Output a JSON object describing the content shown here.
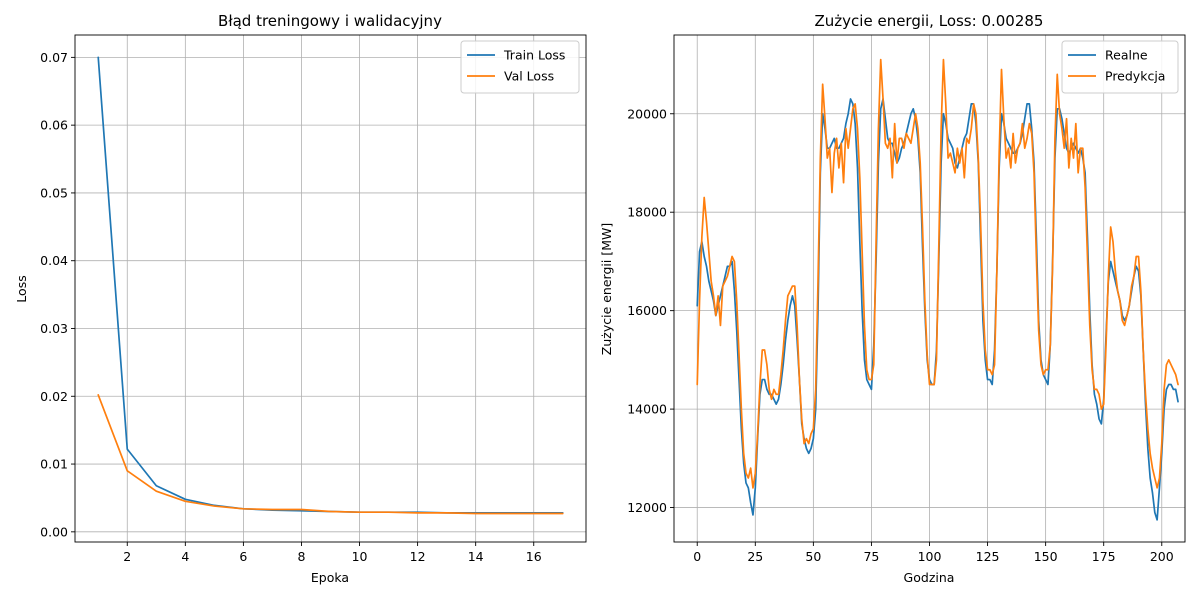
{
  "chart_data": [
    {
      "type": "line",
      "title": "Błąd treningowy i walidacyjny",
      "xlabel": "Epoka",
      "ylabel": "Loss",
      "xlim": [
        0.2,
        17.8
      ],
      "ylim": [
        -0.0015,
        0.0733
      ],
      "xticks": [
        2,
        4,
        6,
        8,
        10,
        12,
        14,
        16
      ],
      "yticks": [
        0.0,
        0.01,
        0.02,
        0.03,
        0.04,
        0.05,
        0.06,
        0.07
      ],
      "ytick_labels": [
        "0.00",
        "0.01",
        "0.02",
        "0.03",
        "0.04",
        "0.05",
        "0.06",
        "0.07"
      ],
      "grid": true,
      "legend": "top-right",
      "x": [
        1,
        2,
        3,
        4,
        5,
        6,
        7,
        8,
        9,
        10,
        11,
        12,
        13,
        14,
        15,
        16,
        17
      ],
      "series": [
        {
          "name": "Train Loss",
          "color": "#1f77b4",
          "values": [
            0.07,
            0.0122,
            0.0068,
            0.0048,
            0.0039,
            0.0034,
            0.0032,
            0.0031,
            0.003,
            0.0029,
            0.0029,
            0.0029,
            0.0028,
            0.0028,
            0.0028,
            0.0028,
            0.0028
          ]
        },
        {
          "name": "Val Loss",
          "color": "#ff7f0e",
          "values": [
            0.0202,
            0.009,
            0.006,
            0.0045,
            0.0038,
            0.0034,
            0.0033,
            0.0033,
            0.003,
            0.0029,
            0.0029,
            0.0028,
            0.0028,
            0.0027,
            0.0027,
            0.0027,
            0.0027
          ]
        }
      ]
    },
    {
      "type": "line",
      "title": "Zużycie energii, Loss: 0.00285",
      "xlabel": "Godzina",
      "ylabel": "Zużycie energii [MW]",
      "xlim": [
        -10,
        210
      ],
      "ylim": [
        11300,
        21600
      ],
      "xticks": [
        0,
        25,
        50,
        75,
        100,
        125,
        150,
        175,
        200
      ],
      "yticks": [
        12000,
        14000,
        16000,
        18000,
        20000
      ],
      "grid": true,
      "legend": "top-right",
      "x_start": 0,
      "x_step": 1,
      "series": [
        {
          "name": "Realne",
          "color": "#1f77b4",
          "values": [
            16100,
            17200,
            17400,
            17100,
            16900,
            16600,
            16400,
            16200,
            15900,
            16100,
            16300,
            16500,
            16700,
            16900,
            16900,
            17000,
            16400,
            15600,
            14600,
            13600,
            12900,
            12500,
            12400,
            12100,
            11850,
            12400,
            13400,
            14300,
            14600,
            14600,
            14400,
            14300,
            14300,
            14200,
            14100,
            14200,
            14500,
            14900,
            15400,
            15800,
            16100,
            16300,
            16100,
            15400,
            14600,
            13700,
            13400,
            13200,
            13100,
            13200,
            13400,
            14000,
            16000,
            18800,
            20000,
            19700,
            19300,
            19300,
            19400,
            19500,
            19300,
            19300,
            19400,
            19500,
            19800,
            20000,
            20300,
            20200,
            19800,
            18900,
            17400,
            16000,
            15000,
            14600,
            14500,
            14400,
            15300,
            17000,
            19000,
            20100,
            20300,
            19900,
            19500,
            19400,
            19400,
            19200,
            19000,
            19100,
            19300,
            19400,
            19600,
            19800,
            20000,
            20100,
            19900,
            19500,
            18800,
            17300,
            16000,
            15000,
            14600,
            14500,
            14500,
            15200,
            17000,
            19000,
            20000,
            19800,
            19500,
            19400,
            19300,
            19000,
            18900,
            19100,
            19300,
            19500,
            19600,
            19900,
            20200,
            20200,
            19800,
            19000,
            17400,
            15800,
            15000,
            14600,
            14600,
            14500,
            15200,
            16800,
            18900,
            20000,
            19800,
            19500,
            19400,
            19300,
            19200,
            19200,
            19300,
            19400,
            19600,
            19900,
            20200,
            20200,
            19700,
            19000,
            17500,
            15800,
            15000,
            14700,
            14600,
            14500,
            15300,
            17000,
            19100,
            20100,
            20100,
            19900,
            19600,
            19300,
            19200,
            19300,
            19400,
            19300,
            19200,
            19300,
            19100,
            18800,
            17500,
            16000,
            14900,
            14300,
            14100,
            13800,
            13700,
            14200,
            15500,
            16600,
            17000,
            16800,
            16600,
            16400,
            16200,
            15900,
            15800,
            15900,
            16100,
            16400,
            16700,
            16900,
            16800,
            16300,
            15200,
            14100,
            13200,
            12600,
            12300,
            11900,
            11750,
            12400,
            13100,
            14000,
            14400,
            14500,
            14500,
            14400,
            14400,
            14150
          ]
        },
        {
          "name": "Predykcja",
          "color": "#ff7f0e",
          "values": [
            14500,
            16200,
            17500,
            18300,
            17800,
            17200,
            16600,
            16300,
            15900,
            16300,
            15700,
            16500,
            16600,
            16700,
            16900,
            17100,
            17000,
            16200,
            15100,
            14000,
            13100,
            12700,
            12600,
            12800,
            12400,
            12700,
            13500,
            14500,
            15200,
            15200,
            14900,
            14400,
            14200,
            14400,
            14300,
            14300,
            14700,
            15200,
            15800,
            16300,
            16400,
            16500,
            16500,
            15700,
            14600,
            13800,
            13300,
            13400,
            13300,
            13500,
            13600,
            14400,
            16600,
            19100,
            20600,
            19900,
            19100,
            19300,
            18400,
            19200,
            19500,
            18900,
            19400,
            18600,
            19700,
            19300,
            19700,
            20100,
            20200,
            19700,
            18700,
            17200,
            15700,
            14800,
            14600,
            14600,
            14900,
            17400,
            19700,
            21100,
            20300,
            19400,
            19300,
            19500,
            18700,
            19800,
            19000,
            19500,
            19500,
            19300,
            19600,
            19500,
            19400,
            19700,
            20000,
            19700,
            19000,
            17700,
            16200,
            15100,
            14500,
            14500,
            14500,
            15000,
            17300,
            19700,
            21100,
            20200,
            19100,
            19200,
            19000,
            18800,
            19300,
            19000,
            19300,
            18700,
            19500,
            19400,
            19700,
            20200,
            20000,
            19100,
            17800,
            16200,
            15200,
            14800,
            14800,
            14700,
            14900,
            16800,
            19200,
            20900,
            19900,
            19100,
            19300,
            18900,
            19600,
            19000,
            19300,
            19400,
            19800,
            19300,
            19500,
            19800,
            19600,
            18800,
            17100,
            15600,
            14900,
            14700,
            14800,
            14800,
            15300,
            16900,
            19500,
            20800,
            20000,
            19700,
            19300,
            19900,
            18900,
            19500,
            19100,
            19800,
            18800,
            19300,
            19300,
            18500,
            17100,
            15700,
            14800,
            14400,
            14400,
            14300,
            14000,
            14100,
            15300,
            16700,
            17700,
            17400,
            16800,
            16400,
            16200,
            15800,
            15700,
            15900,
            16100,
            16500,
            16700,
            17100,
            17100,
            16400,
            15200,
            14300,
            13600,
            13100,
            12800,
            12600,
            12400,
            12600,
            13300,
            14400,
            14900,
            15000,
            14900,
            14800,
            14700,
            14500
          ]
        }
      ]
    }
  ]
}
